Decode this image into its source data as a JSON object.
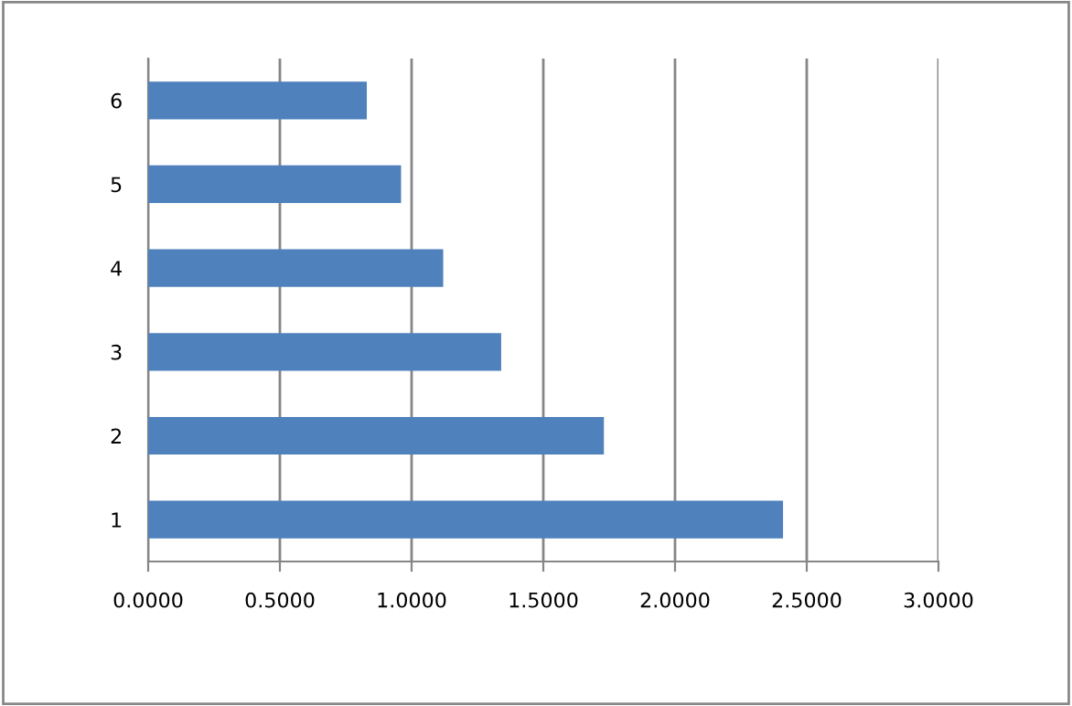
{
  "chart_data": {
    "type": "bar",
    "orientation": "horizontal",
    "categories": [
      "6",
      "5",
      "4",
      "3",
      "2",
      "1"
    ],
    "values": [
      0.83,
      0.96,
      1.12,
      1.34,
      1.73,
      2.41
    ],
    "color": "#4f81bd",
    "xlim": [
      0,
      3
    ],
    "xticks": [
      {
        "value": 0,
        "label": "0.0000"
      },
      {
        "value": 0.5,
        "label": "0.5000"
      },
      {
        "value": 1,
        "label": "1.0000"
      },
      {
        "value": 1.5,
        "label": "1.5000"
      },
      {
        "value": 2,
        "label": "2.0000"
      },
      {
        "value": 2.5,
        "label": "2.5000"
      },
      {
        "value": 3,
        "label": "3.0000"
      }
    ],
    "grid": "x",
    "legend": false
  }
}
